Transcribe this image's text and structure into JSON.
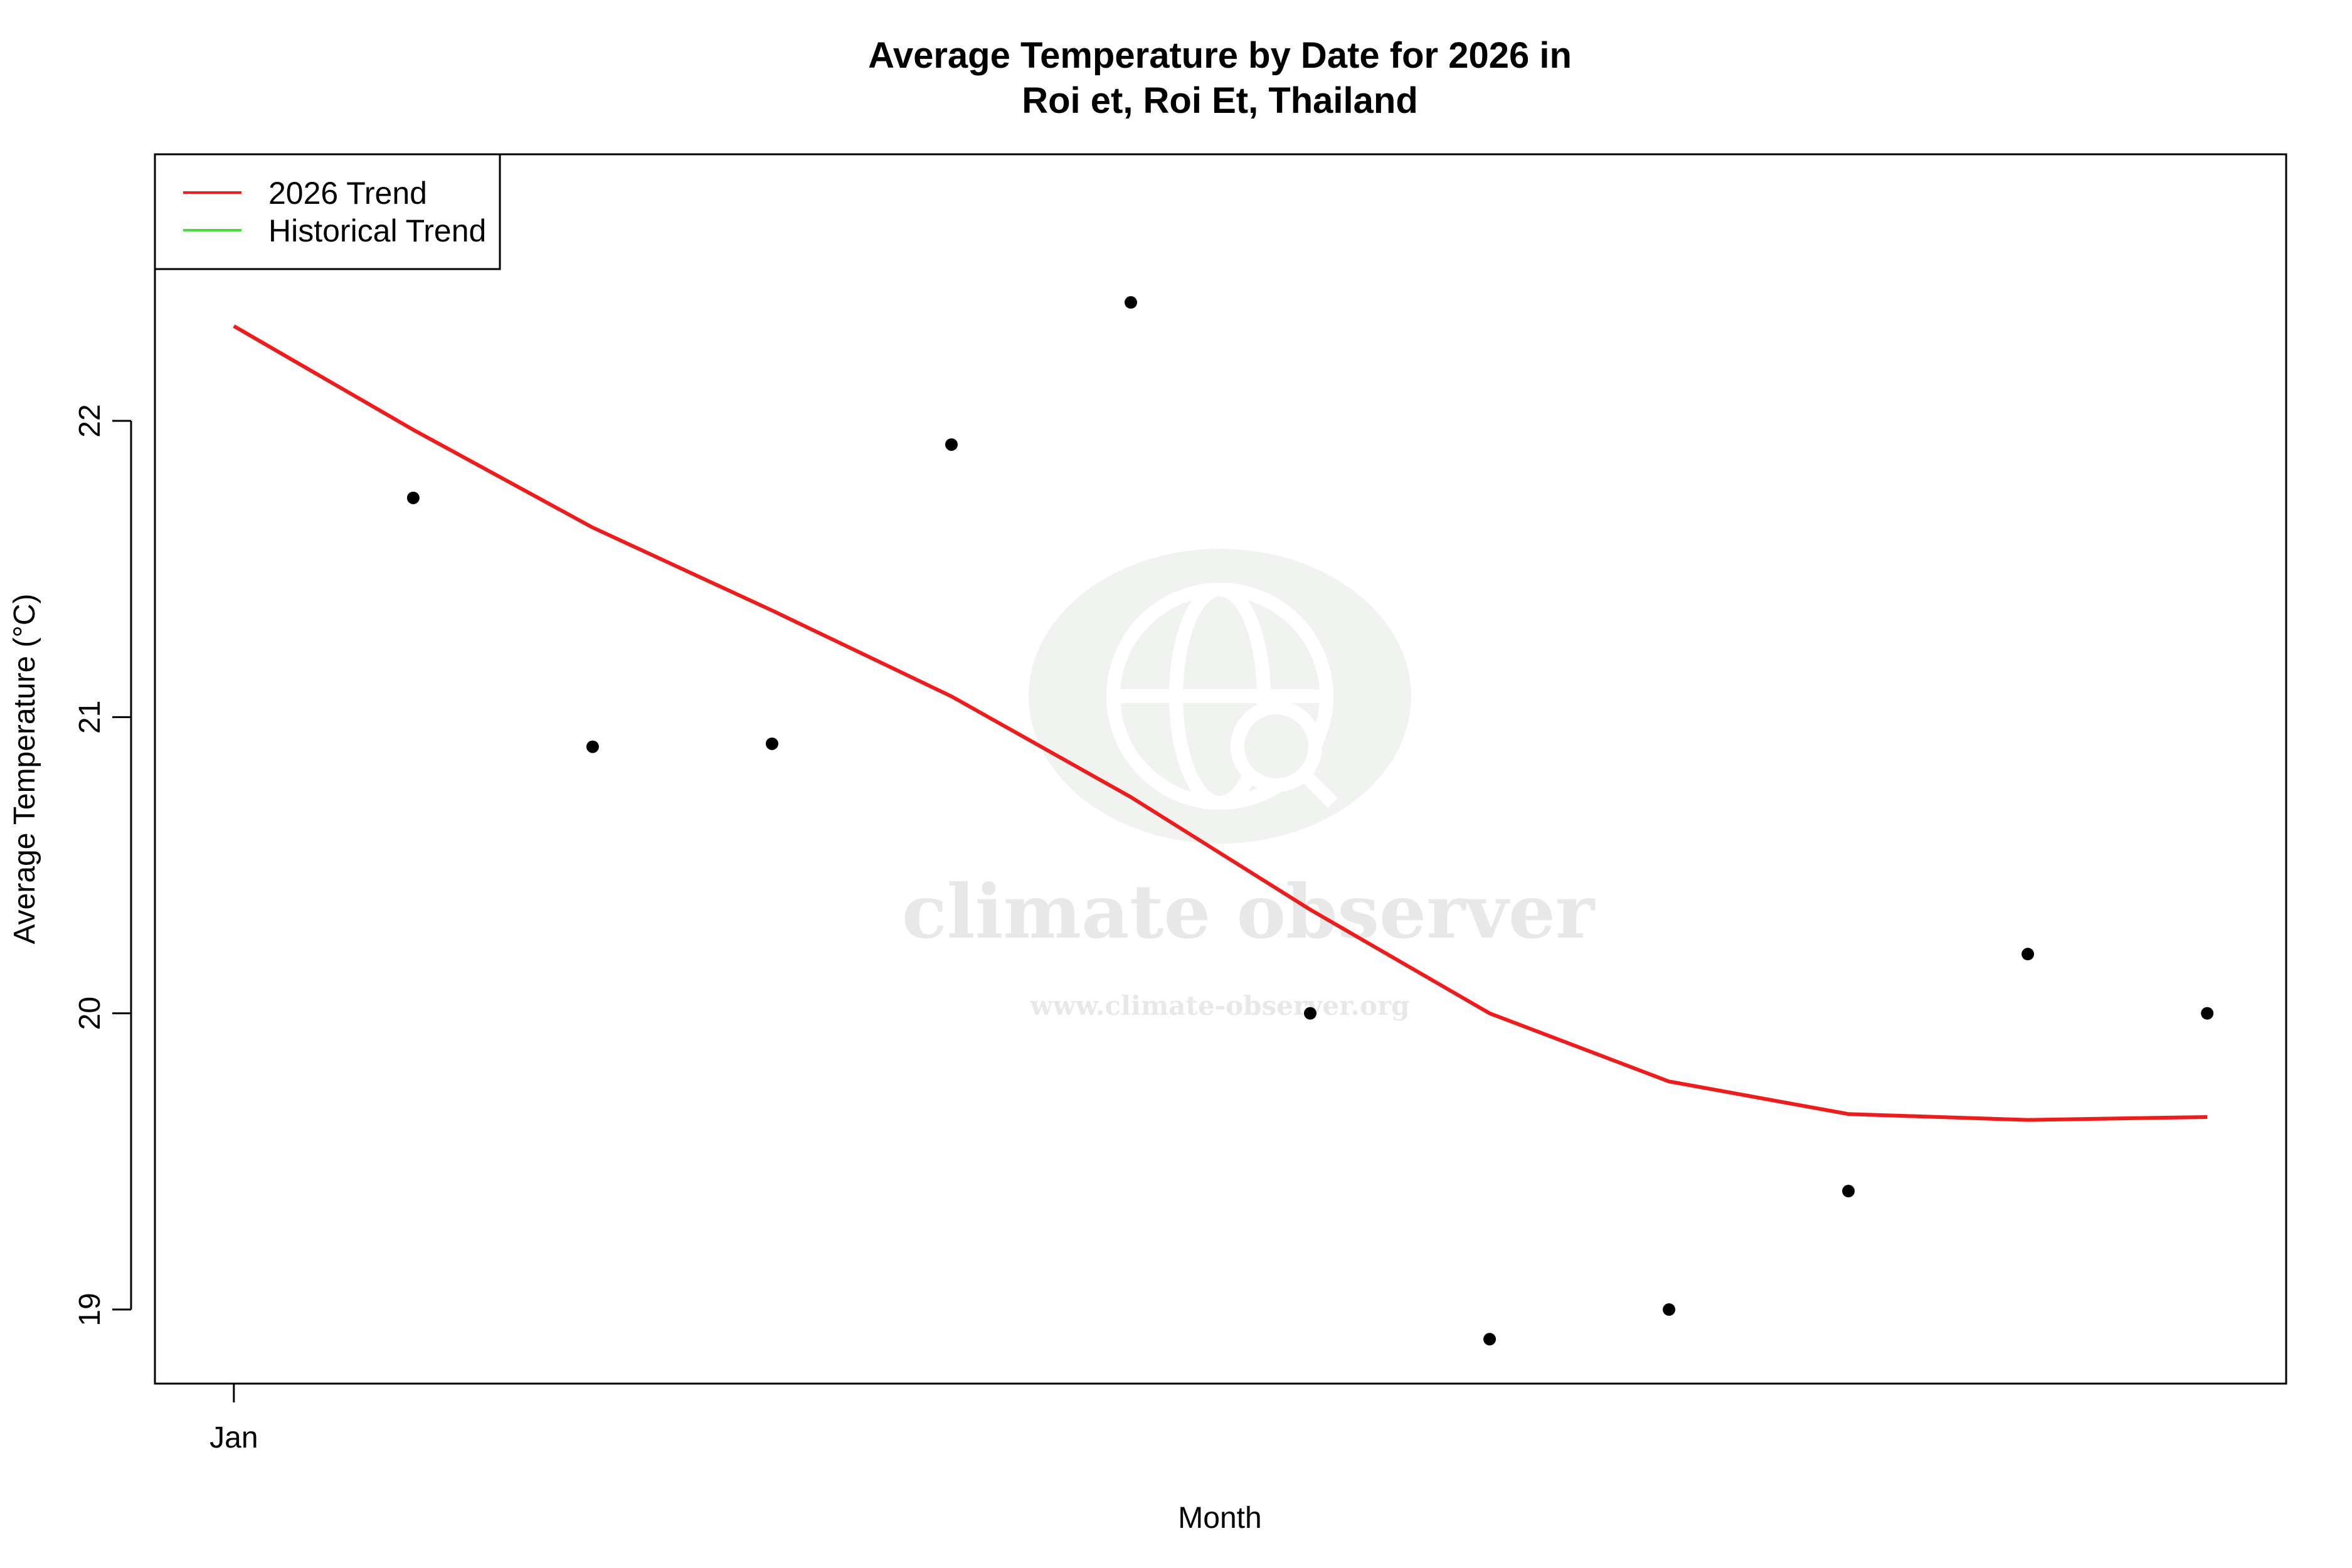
{
  "chart_data": {
    "type": "scatter",
    "title": "Average Temperature by Date for 2026 in",
    "subtitle": "Roi et, Roi Et, Thailand",
    "xlabel": "Month",
    "ylabel": "Average Temperature (°C)",
    "x_tick_labels": [
      {
        "x": 1,
        "label": "Jan"
      }
    ],
    "y_ticks": [
      19,
      20,
      21,
      22
    ],
    "xlim": [
      0.56,
      12.44
    ],
    "ylim": [
      18.75,
      22.9
    ],
    "grid": false,
    "legend": {
      "placement": "top-left",
      "entries": [
        {
          "label": "2026 Trend",
          "color": "#ee1c1c"
        },
        {
          "label": "Historical Trend",
          "color": "#44dd44"
        }
      ]
    },
    "points": {
      "x": [
        2,
        3,
        4,
        5,
        6,
        7,
        8,
        9,
        10,
        11,
        12
      ],
      "y": [
        21.74,
        20.9,
        20.91,
        21.92,
        22.4,
        20.0,
        18.9,
        19.0,
        19.4,
        20.2,
        20.0
      ]
    },
    "series": [
      {
        "name": "2026 Trend",
        "color": "#ee1c1c",
        "x": [
          1,
          2,
          3,
          4,
          5,
          6,
          7,
          8,
          9,
          10,
          11,
          12
        ],
        "y": [
          22.32,
          21.97,
          21.64,
          21.36,
          21.07,
          20.73,
          20.35,
          20.0,
          19.77,
          19.66,
          19.64,
          19.65
        ]
      }
    ]
  },
  "watermark": {
    "name": "climate observer",
    "url": "www.climate-observer.org"
  }
}
